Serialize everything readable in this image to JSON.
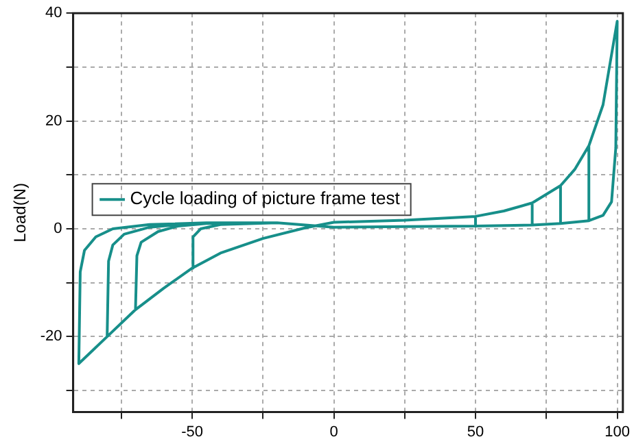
{
  "chart_data": {
    "type": "line",
    "ylabel": "Load(N)",
    "xlim": [
      -92,
      102
    ],
    "ylim": [
      -34,
      40
    ],
    "xticks": [
      {
        "value": -75,
        "label": null
      },
      -50,
      {
        "value": -25,
        "label": null
      },
      0,
      {
        "value": 25,
        "label": null
      },
      50,
      {
        "value": 75,
        "label": null
      },
      100
    ],
    "yticks": [
      {
        "value": -30,
        "label": null
      },
      -20,
      {
        "value": -10,
        "label": null
      },
      0,
      {
        "value": 10,
        "label": null
      },
      20,
      {
        "value": 30,
        "label": null
      },
      40
    ],
    "grid": true,
    "legend": "top",
    "marker": "none",
    "line_style": "solid",
    "series": [
      {
        "name": "Cycle loading of picture frame test",
        "color": "#178f8a",
        "x": [
          0,
          25,
          50,
          50,
          25,
          0,
          -10,
          -25,
          -40,
          -50,
          -49.7,
          -47,
          -40,
          -20,
          0,
          25,
          50,
          70,
          70,
          60,
          50,
          25,
          0,
          -10,
          -25,
          -40,
          -50,
          -60,
          -70,
          -69.5,
          -68,
          -62,
          -55,
          -45,
          -20,
          0,
          25,
          50,
          70,
          80,
          80,
          70,
          60,
          50,
          25,
          0,
          -10,
          -25,
          -40,
          -50,
          -60,
          -70,
          -80,
          -79.5,
          -78,
          -74,
          -65,
          -50,
          -20,
          0,
          25,
          50,
          70,
          80,
          90,
          90,
          85,
          80,
          70,
          60,
          50,
          25,
          0,
          -10,
          -25,
          -40,
          -50,
          -60,
          -70,
          -80,
          -90,
          -89.5,
          -88,
          -84,
          -78,
          -65,
          -45,
          -20,
          0,
          25,
          50,
          70,
          80,
          90,
          95,
          98,
          99.5,
          100,
          95,
          90,
          85,
          80,
          70,
          60,
          50,
          25,
          0
        ],
        "values": [
          0.3,
          0.4,
          0.5,
          2.3,
          1.6,
          1.2,
          0.2,
          -1.8,
          -4.5,
          -7.3,
          -1.5,
          0,
          0.8,
          1.1,
          0.3,
          0.4,
          0.5,
          0.7,
          4.8,
          3.3,
          2.3,
          1.6,
          1.2,
          0.2,
          -1.8,
          -4.5,
          -7.3,
          -11,
          -15,
          -5,
          -2.5,
          -0.5,
          0.5,
          1,
          1.1,
          0.3,
          0.4,
          0.5,
          0.7,
          1,
          8,
          4.8,
          3.3,
          2.3,
          1.6,
          1.2,
          0.2,
          -1.8,
          -4.5,
          -7.3,
          -11,
          -15,
          -20,
          -6,
          -3,
          -1,
          0.3,
          1,
          1.1,
          0.3,
          0.4,
          0.5,
          0.7,
          1,
          1.5,
          15.4,
          11,
          8,
          4.8,
          3.3,
          2.3,
          1.6,
          1.2,
          0.2,
          -1.8,
          -4.5,
          -7.3,
          -11,
          -15,
          -20,
          -25,
          -8,
          -4,
          -1.5,
          0,
          0.8,
          1.1,
          1.1,
          0.3,
          0.4,
          0.5,
          0.7,
          1,
          1.5,
          2.5,
          5,
          15,
          38.5,
          23,
          15.4,
          11,
          8,
          4.8,
          3.3,
          2.3,
          1.6,
          1.2
        ]
      }
    ]
  }
}
